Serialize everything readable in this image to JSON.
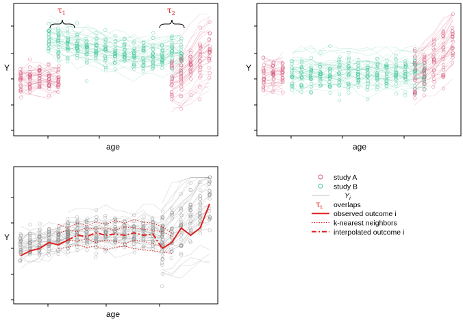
{
  "chart_data": [
    {
      "type": "line",
      "panel": "top-left",
      "xlabel": "age",
      "ylabel": "Y",
      "xlim": [
        0,
        21
      ],
      "ylim": [
        0,
        10
      ],
      "annotations": [
        {
          "label": "τ",
          "sub": "1",
          "x_range": [
            2.2,
            4.3
          ]
        },
        {
          "label": "τ",
          "sub": "2",
          "x_range": [
            15.2,
            17.3
          ]
        }
      ],
      "groups": [
        {
          "name": "study A",
          "x_from": 0,
          "x_to": 4.3,
          "center": 4.2,
          "spread": 1.2
        },
        {
          "name": "study B",
          "x_from": 2.2,
          "x_to": 17.2,
          "center": [
            7.6,
            7.4,
            7.2,
            7.0,
            6.9,
            6.8,
            6.6,
            6.4,
            6.3,
            6.2,
            6.1,
            6.2,
            6.3,
            6.4
          ],
          "spread": 1.3
        },
        {
          "name": "study A",
          "x_from": 15.2,
          "x_to": 20,
          "center": [
            3.8,
            4.3,
            5.2,
            6.0,
            6.6
          ],
          "spread": 2.0
        }
      ]
    },
    {
      "type": "line",
      "panel": "top-right",
      "xlabel": "age",
      "ylabel": "Y",
      "xlim": [
        0,
        21
      ],
      "ylim": [
        0,
        10
      ],
      "groups": [
        {
          "name": "study A",
          "x_from": 0,
          "x_to": 2.5,
          "center": 4.6,
          "spread": 1.2
        },
        {
          "name": "study B",
          "x_from": 2.5,
          "x_to": 17.2,
          "center": 4.6,
          "spread": 1.3
        },
        {
          "name": "study A",
          "x_from": 15.2,
          "x_to": 20,
          "center": [
            4.5,
            5.0,
            5.6,
            6.3,
            7.2
          ],
          "spread": 2.0
        }
      ]
    },
    {
      "type": "line",
      "panel": "bottom-left",
      "xlabel": "age",
      "ylabel": "Y",
      "xlim": [
        0,
        21
      ],
      "ylim": [
        0,
        10
      ],
      "series": [
        {
          "name": "observed outcome i",
          "style": "solid",
          "x": [
            0,
            1,
            2,
            3,
            4,
            5,
            15,
            16,
            17,
            18,
            19,
            20
          ],
          "y": [
            3.3,
            3.7,
            3.9,
            4.4,
            4.2,
            4.6,
            3.9,
            4.4,
            5.6,
            5.0,
            5.6,
            7.6
          ]
        },
        {
          "name": "interpolated outcome i",
          "style": "dashdot",
          "x": [
            5,
            6,
            7,
            8,
            9,
            10,
            11,
            12,
            13,
            14,
            15
          ],
          "y": [
            4.6,
            5.0,
            4.9,
            5.2,
            5.0,
            5.1,
            5.0,
            5.2,
            5.0,
            5.1,
            3.9
          ]
        },
        {
          "name": "k-nearest neighbors",
          "style": "dotted",
          "x_from": 4,
          "x_to": 16,
          "y_paths": [
            [
              5.9,
              5.6,
              6.0,
              5.8,
              6.1,
              5.9,
              6.2,
              6.0,
              6.3,
              6.1,
              6.0,
              5.7,
              5.2
            ],
            [
              5.2,
              5.4,
              5.3,
              5.6,
              5.5,
              5.6,
              5.4,
              5.7,
              5.6,
              5.5,
              5.4,
              5.3,
              4.9
            ],
            [
              4.3,
              4.6,
              4.5,
              4.7,
              4.4,
              4.6,
              4.5,
              4.3,
              4.6,
              4.5,
              4.3,
              4.0,
              4.4
            ],
            [
              3.9,
              4.0,
              4.2,
              4.0,
              4.1,
              3.8,
              4.0,
              4.1,
              3.9,
              3.8,
              3.7,
              3.6,
              3.5
            ]
          ]
        }
      ]
    }
  ],
  "legend": {
    "items": [
      {
        "label": "study A",
        "kind": "circle-a"
      },
      {
        "label": "study B",
        "kind": "circle-b"
      },
      {
        "label": "Y",
        "sub": "i",
        "kind": "grey-line"
      },
      {
        "label": "τ",
        "sub": "t",
        "kind": "tau",
        "text": "overlaps"
      },
      {
        "label": "observed outcome i",
        "kind": "solid-red"
      },
      {
        "label": "k-nearest neighbors",
        "kind": "dotted-red"
      },
      {
        "label": "interpolated outcome i",
        "kind": "dashdot-red"
      }
    ]
  },
  "colors": {
    "study_a": "#d4577a",
    "study_b": "#45c69a",
    "grey": "#8a8a8a",
    "outcome": "#e01e1e"
  }
}
